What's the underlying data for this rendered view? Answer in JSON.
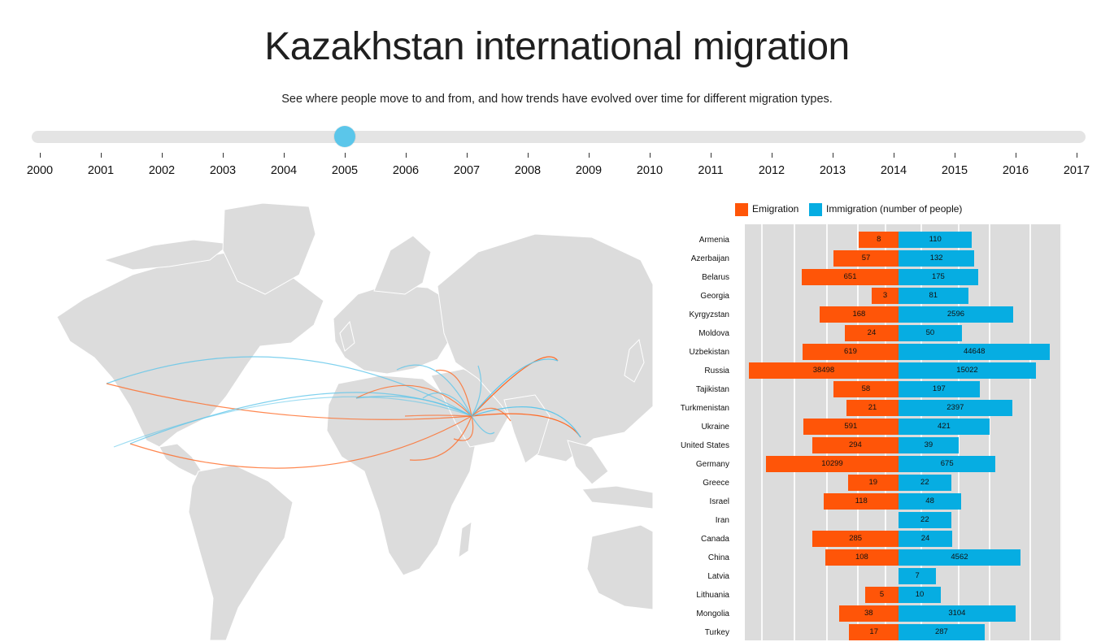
{
  "title": "Kazakhstan international migration",
  "subtitle": "See where people move to and from, and how trends have evolved over time for different migration types.",
  "timeline": {
    "years": [
      "2000",
      "2001",
      "2002",
      "2003",
      "2004",
      "2005",
      "2006",
      "2007",
      "2008",
      "2009",
      "2010",
      "2011",
      "2012",
      "2013",
      "2014",
      "2015",
      "2016",
      "2017"
    ],
    "selected": "2005"
  },
  "colors": {
    "emigration": "#ff5508",
    "immigration": "#06ade2",
    "map_land": "#dcdcdc",
    "slider": "#5bc6ea"
  },
  "legend": {
    "emigration": "Emigration",
    "immigration": "Immigration (number of people)"
  },
  "chart_data": {
    "type": "bar",
    "orientation": "horizontal-diverging",
    "categories": [
      "Armenia",
      "Azerbaijan",
      "Belarus",
      "Georgia",
      "Kyrgyzstan",
      "Moldova",
      "Uzbekistan",
      "Russia",
      "Tajikistan",
      "Turkmenistan",
      "Ukraine",
      "United States",
      "Germany",
      "Greece",
      "Israel",
      "Iran",
      "Canada",
      "China",
      "Latvia",
      "Lithuania",
      "Mongolia",
      "Turkey"
    ],
    "series": [
      {
        "name": "Emigration",
        "color": "#ff5508",
        "values": [
          8,
          57,
          651,
          3,
          168,
          24,
          619,
          38498,
          58,
          21,
          591,
          294,
          10299,
          19,
          118,
          null,
          285,
          108,
          null,
          5,
          38,
          17
        ]
      },
      {
        "name": "Immigration (number of people)",
        "color": "#06ade2",
        "values": [
          110,
          132,
          175,
          81,
          2596,
          50,
          44648,
          15022,
          197,
          2397,
          421,
          39,
          675,
          22,
          48,
          22,
          24,
          4562,
          7,
          10,
          3104,
          287
        ]
      }
    ],
    "scale": "log",
    "legend_position": "top"
  }
}
